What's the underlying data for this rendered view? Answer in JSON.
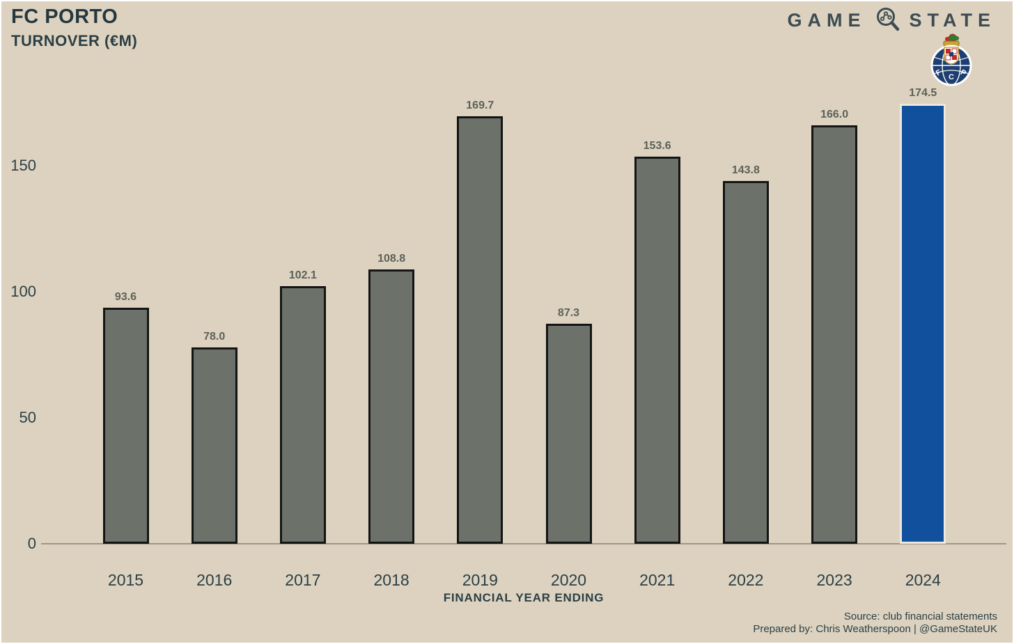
{
  "header": {
    "title": "FC PORTO",
    "subtitle": "TURNOVER (€M)",
    "brand": {
      "part1": "GAME",
      "part2": "STATE",
      "icon": "magnifier-network-icon",
      "color": "#3c4c52"
    },
    "crest": {
      "name": "fc-porto-crest",
      "letters": "F C P"
    }
  },
  "chart_data": {
    "type": "bar",
    "categories": [
      "2015",
      "2016",
      "2017",
      "2018",
      "2019",
      "2020",
      "2021",
      "2022",
      "2023",
      "2024"
    ],
    "values": [
      93.6,
      78.0,
      102.1,
      108.8,
      169.7,
      87.3,
      153.6,
      143.8,
      166.0,
      174.5
    ],
    "title": "FC PORTO — TURNOVER (€M)",
    "xlabel": "FINANCIAL YEAR ENDING",
    "ylabel": "",
    "yticks": [
      0,
      50,
      100,
      150
    ],
    "ylim": [
      0,
      185
    ],
    "grid": false,
    "legend": false,
    "value_labels_decimals": 1,
    "bar_color_default": "#6c726a",
    "bar_border_default": "#141414",
    "bar_color_highlight": "#11509d",
    "bar_border_highlight": "#efe9dd",
    "highlight_index": 9
  },
  "footer": {
    "source": "Source: club financial statements",
    "prepared_by": "Prepared by: Chris Weatherspoon | @GameStateUK"
  },
  "colors": {
    "background": "#ddd2c0",
    "axis_line": "#9c968a",
    "text_dark": "#2b3f45",
    "value_label": "#5c6156"
  }
}
